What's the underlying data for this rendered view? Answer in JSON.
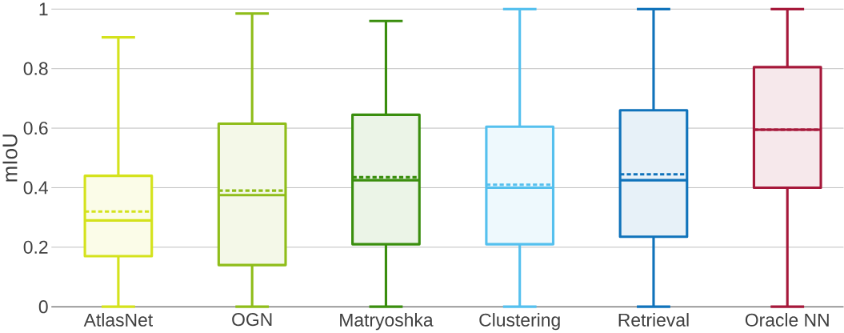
{
  "chart_data": {
    "type": "box",
    "ylabel": "mIoU",
    "categories": [
      "AtlasNet",
      "OGN",
      "Matryoshka",
      "Clustering",
      "Retrieval",
      "Oracle NN"
    ],
    "colors": [
      "#d4e21c",
      "#8fbd1a",
      "#3a8e0e",
      "#55c0ee",
      "#1073bb",
      "#a6183a"
    ],
    "boxes": [
      {
        "low": 0,
        "q1": 0.17,
        "median": 0.29,
        "q3": 0.44,
        "high": 0.905,
        "mean": 0.32
      },
      {
        "low": 0,
        "q1": 0.14,
        "median": 0.375,
        "q3": 0.615,
        "high": 0.985,
        "mean": 0.39
      },
      {
        "low": 0,
        "q1": 0.21,
        "median": 0.425,
        "q3": 0.645,
        "high": 0.96,
        "mean": 0.435
      },
      {
        "low": 0,
        "q1": 0.21,
        "median": 0.4,
        "q3": 0.605,
        "high": 1,
        "mean": 0.41
      },
      {
        "low": 0,
        "q1": 0.235,
        "median": 0.425,
        "q3": 0.66,
        "high": 1,
        "mean": 0.445
      },
      {
        "low": 0,
        "q1": 0.4,
        "median": 0.595,
        "q3": 0.805,
        "high": 1,
        "mean": 0.595
      }
    ],
    "ylim": [
      0,
      1
    ],
    "yticks": [
      0,
      0.2,
      0.4,
      0.6,
      0.8,
      1
    ],
    "grid": "y"
  }
}
